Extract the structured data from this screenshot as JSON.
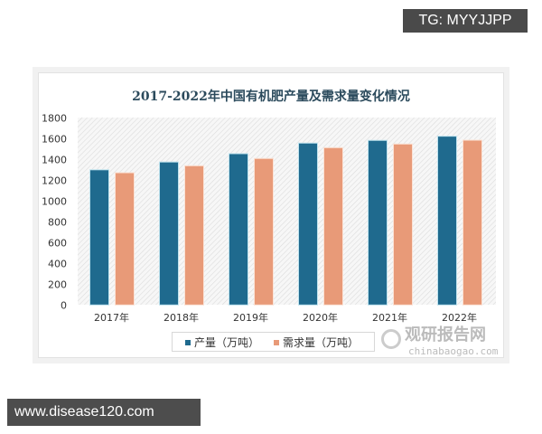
{
  "tags": {
    "tg": "TG: MYYJJPP",
    "site": "www.disease120.com"
  },
  "watermark": {
    "name": "观研报告网",
    "url": "chinabaogao.com"
  },
  "chart_data": {
    "type": "bar",
    "title": "2017-2022年中国有机肥产量及需求量变化情况",
    "categories": [
      "2017年",
      "2018年",
      "2019年",
      "2020年",
      "2021年",
      "2022年"
    ],
    "series": [
      {
        "name": "产量（万吨）",
        "color": "#1f6a8e",
        "values": [
          1300,
          1375,
          1455,
          1557,
          1583,
          1623
        ]
      },
      {
        "name": "需求量（万吨）",
        "color": "#e89a78",
        "values": [
          1272,
          1339,
          1409,
          1513,
          1548,
          1585
        ]
      }
    ],
    "ylim": [
      0,
      1800
    ],
    "yticks": [
      "0",
      "200",
      "400",
      "600",
      "800",
      "1000",
      "1200",
      "1400",
      "1600",
      "1800"
    ],
    "grid": false,
    "legend": "bottom"
  }
}
